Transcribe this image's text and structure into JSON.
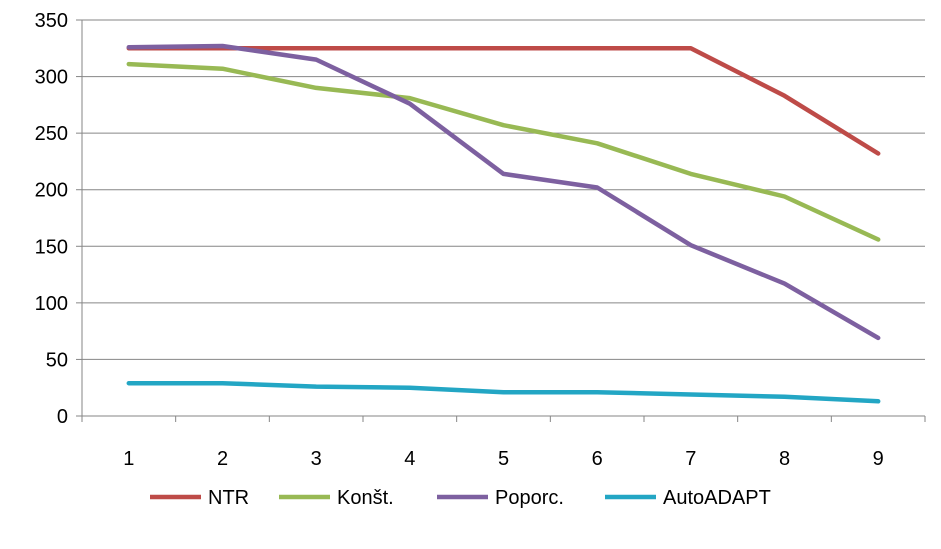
{
  "chart_data": {
    "type": "line",
    "title": "",
    "xlabel": "",
    "ylabel": "",
    "categories": [
      "1",
      "2",
      "3",
      "4",
      "5",
      "6",
      "7",
      "8",
      "9"
    ],
    "ylim": [
      0,
      350
    ],
    "yticks": [
      0,
      50,
      100,
      150,
      200,
      250,
      300,
      350
    ],
    "grid": "horizontal",
    "legend_position": "bottom",
    "series": [
      {
        "name": "NTR",
        "color": "#BE4B48",
        "values": [
          325,
          325,
          325,
          325,
          325,
          325,
          325,
          283,
          232
        ]
      },
      {
        "name": "Konšt.",
        "color": "#98B954",
        "values": [
          311,
          307,
          290,
          281,
          257,
          241,
          214,
          194,
          156
        ]
      },
      {
        "name": "Poporc.",
        "color": "#7D60A0",
        "values": [
          326,
          327,
          315,
          276,
          214,
          202,
          151,
          117,
          69
        ]
      },
      {
        "name": "AutoADAPT",
        "color": "#23A6C4",
        "values": [
          29,
          29,
          26,
          25,
          21,
          21,
          19,
          17,
          13
        ]
      }
    ]
  }
}
